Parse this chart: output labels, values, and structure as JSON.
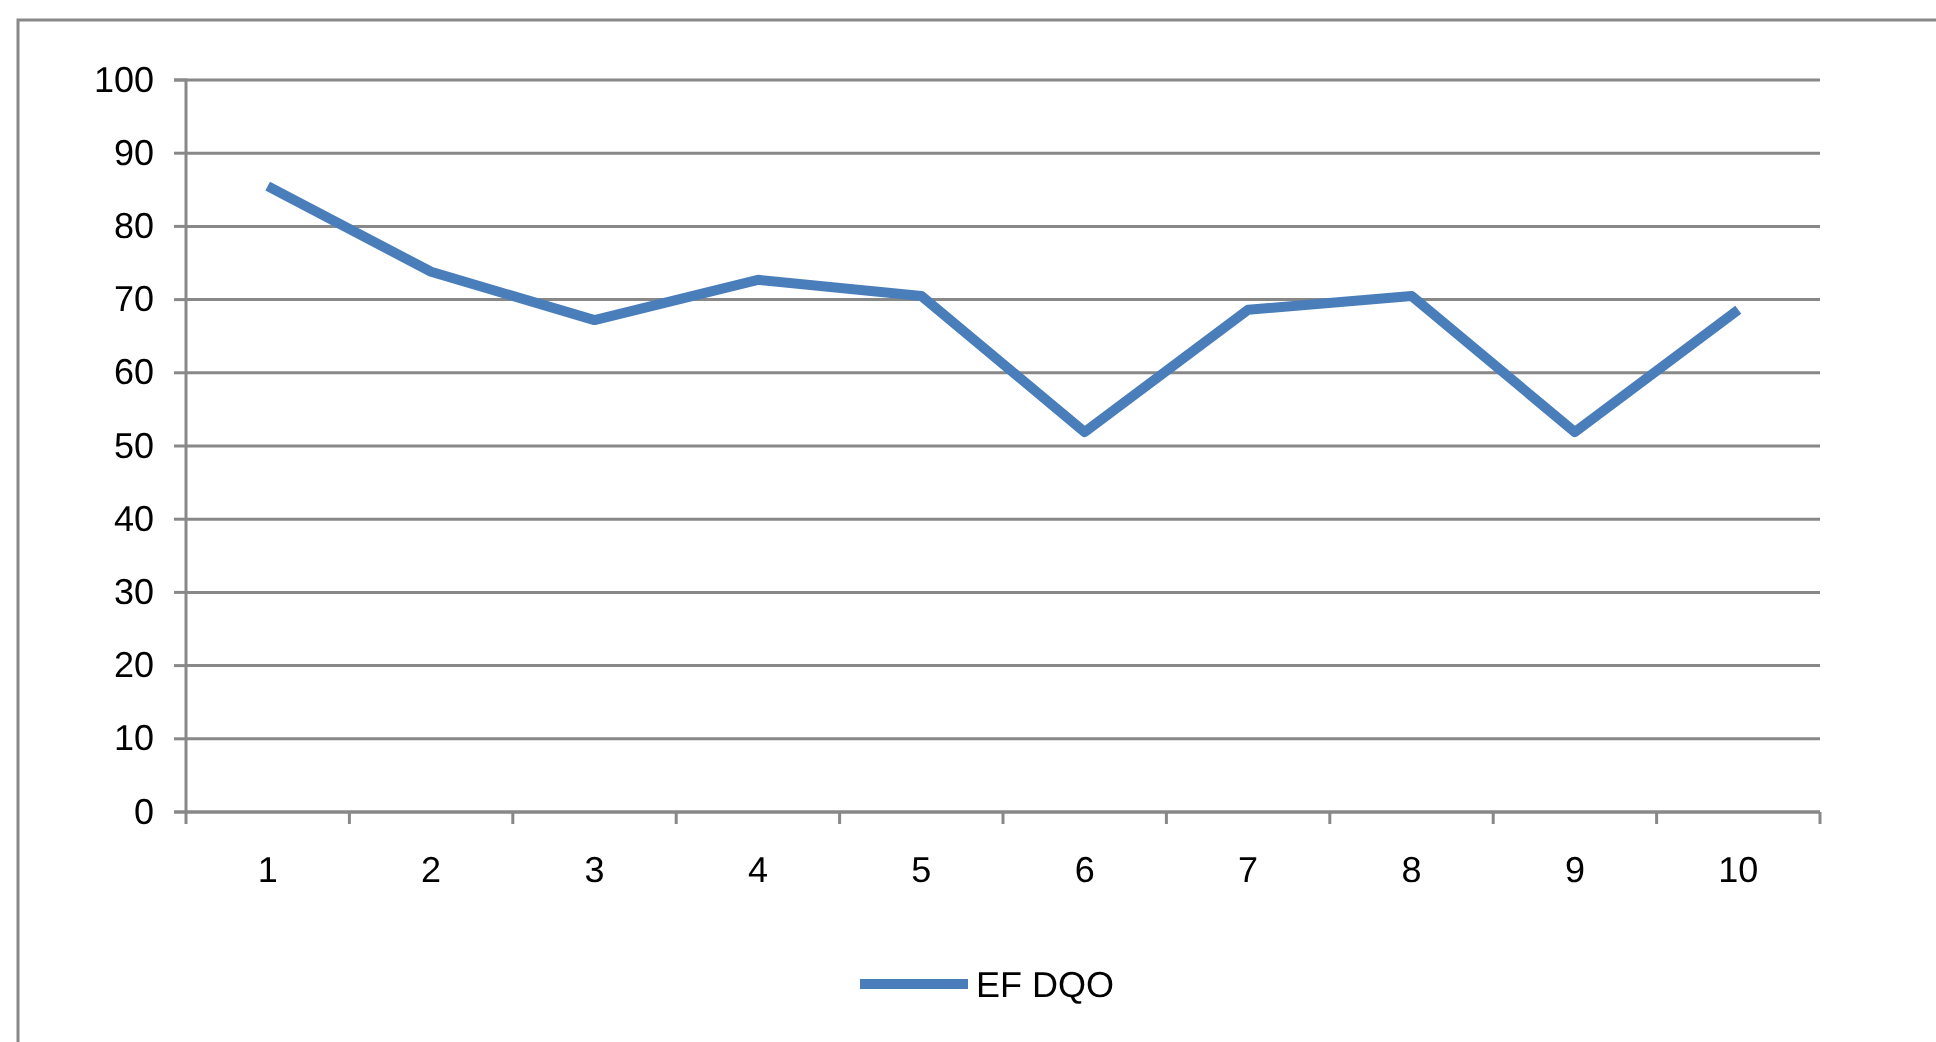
{
  "chart_data": {
    "type": "line",
    "categories": [
      "1",
      "2",
      "3",
      "4",
      "5",
      "6",
      "7",
      "8",
      "9",
      "10"
    ],
    "series": [
      {
        "name": "EF DQO",
        "color": "#4a7ebb",
        "values": [
          85.5,
          73.8,
          67.2,
          72.7,
          70.5,
          51.9,
          68.6,
          70.5,
          51.9,
          68.6
        ]
      }
    ],
    "ylim": [
      0,
      100
    ],
    "yticks": [
      0,
      10,
      20,
      30,
      40,
      50,
      60,
      70,
      80,
      90,
      100
    ],
    "grid": "y",
    "legend": "bottom",
    "marker": "none",
    "line_style": "solid"
  }
}
